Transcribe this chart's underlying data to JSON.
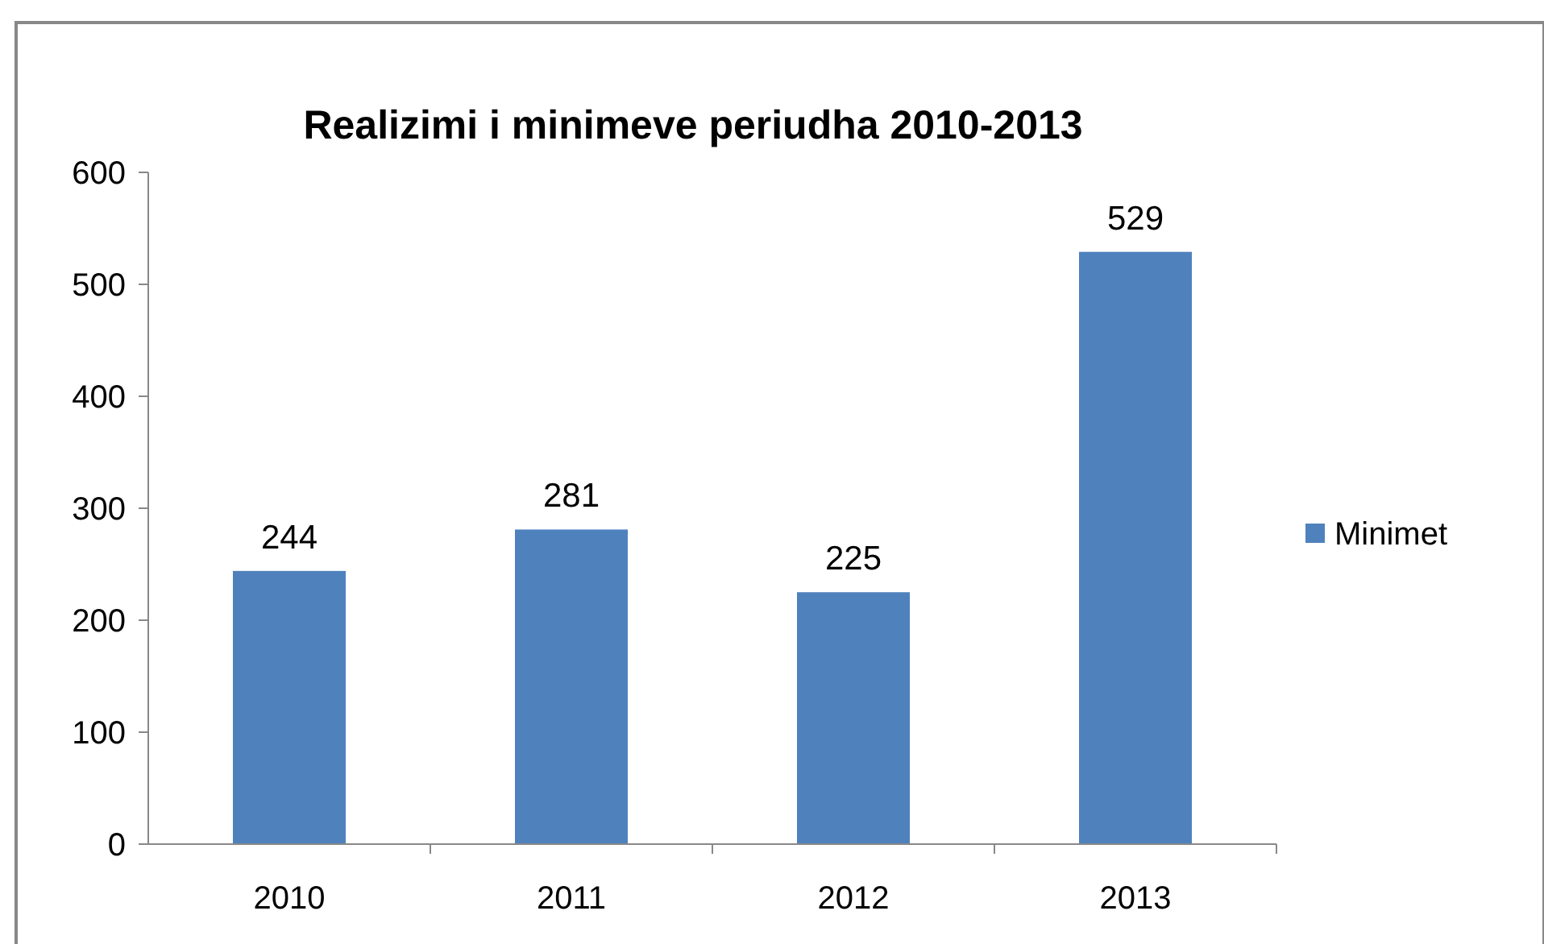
{
  "chart_data": {
    "type": "bar",
    "title": "Realizimi i minimeve periudha 2010-2013",
    "categories": [
      "2010",
      "2011",
      "2012",
      "2013"
    ],
    "series": [
      {
        "name": "Minimet",
        "color": "#4f81bd",
        "values": [
          244,
          281,
          225,
          529
        ]
      }
    ],
    "ylim": [
      0,
      600
    ],
    "yticks": [
      0,
      100,
      200,
      300,
      400,
      500,
      600
    ],
    "grid": false,
    "legend": "right",
    "data_labels": true
  }
}
